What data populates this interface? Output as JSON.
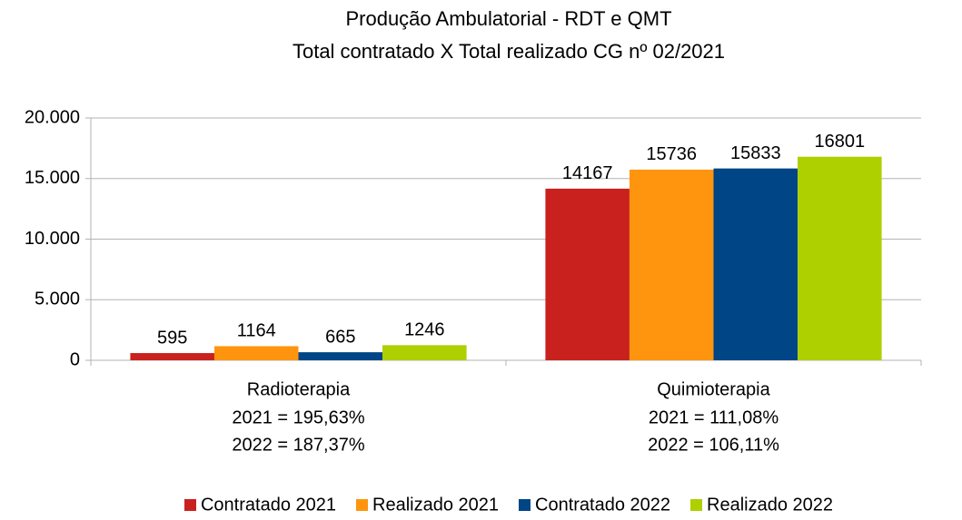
{
  "chart_data": {
    "type": "bar",
    "title": "Produção Ambulatorial - RDT e QMT",
    "subtitle": "Total contratado X Total realizado CG nº 02/2021",
    "categories": [
      "Radioterapia",
      "Quimioterapia"
    ],
    "category_notes": [
      [
        "2021 = 195,63%",
        "2022 = 187,37%"
      ],
      [
        "2021 = 111,08%",
        "2022 = 106,11%"
      ]
    ],
    "series": [
      {
        "name": "Contratado 2021",
        "color": "#c9211e",
        "values": [
          595,
          14167
        ]
      },
      {
        "name": "Realizado 2021",
        "color": "#ff950e",
        "values": [
          1164,
          15736
        ]
      },
      {
        "name": "Contratado 2022",
        "color": "#004586",
        "values": [
          665,
          15833
        ]
      },
      {
        "name": "Realizado 2022",
        "color": "#aecf00",
        "values": [
          1246,
          16801
        ]
      }
    ],
    "ylim": [
      0,
      20000
    ],
    "yticks": [
      0,
      {
        "value": 5000,
        "label": "5.000"
      },
      {
        "value": 10000,
        "label": "10.000"
      },
      {
        "value": 15000,
        "label": "15.000"
      },
      {
        "value": 20000,
        "label": "20.000"
      }
    ],
    "grid": true,
    "legend": "bottom"
  }
}
